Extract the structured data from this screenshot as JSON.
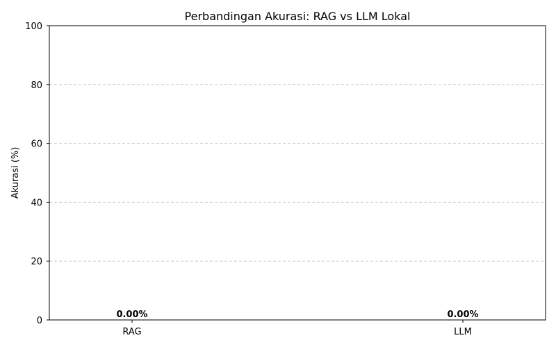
{
  "chart_data": {
    "type": "bar",
    "title": "Perbandingan Akurasi: RAG vs LLM Lokal",
    "xlabel": "",
    "ylabel": "Akurasi (%)",
    "categories": [
      "RAG",
      "LLM"
    ],
    "values": [
      0.0,
      0.0
    ],
    "data_labels": [
      "0.00%",
      "0.00%"
    ],
    "ylim": [
      0,
      100
    ],
    "yticks": [
      "0",
      "20",
      "40",
      "60",
      "80",
      "100"
    ],
    "grid": "horizontal dashed",
    "legend": "none"
  }
}
